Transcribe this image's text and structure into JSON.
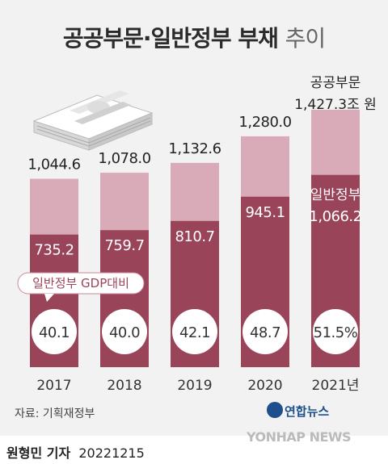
{
  "title": {
    "main": "공공부문·일반정부 부채",
    "suffix": "추이"
  },
  "labels": {
    "public_sector": "공공부문",
    "general_government": "일반정부",
    "gdp_ratio_callout": "일반정부 GDP대비"
  },
  "last_total_text": "1,427.3조 원",
  "last_general_text": "1,066.2",
  "source": "자료: 기획재정부",
  "agency_logo_text": "연합뉴스",
  "watermark": "YONHAP NEWS",
  "credit": {
    "reporter": "원형민 기자",
    "date": "20221215"
  },
  "colors": {
    "total": "#d9aab7",
    "general": "#9a4459",
    "background": "#f2f2f2"
  },
  "chart_data": {
    "type": "bar",
    "categories": [
      "2017",
      "2018",
      "2019",
      "2020",
      "2021년"
    ],
    "series": [
      {
        "name": "공공부문",
        "values": [
          1044.6,
          1078.0,
          1132.6,
          1280.0,
          1427.3
        ],
        "labels": [
          "1,044.6",
          "1,078.0",
          "1,132.6",
          "1,280.0",
          "1,427.3"
        ]
      },
      {
        "name": "일반정부",
        "values": [
          735.2,
          759.7,
          810.7,
          945.1,
          1066.2
        ],
        "labels": [
          "735.2",
          "759.7",
          "810.7",
          "945.1",
          "1,066.2"
        ]
      }
    ],
    "gdp_ratio": {
      "name": "일반정부 GDP대비",
      "values": [
        40.1,
        40.0,
        42.1,
        48.7,
        51.5
      ],
      "labels": [
        "40.1",
        "40.0",
        "42.1",
        "48.7",
        "51.5%"
      ]
    },
    "unit": "조 원",
    "title": "공공부문·일반정부 부채 추이"
  }
}
